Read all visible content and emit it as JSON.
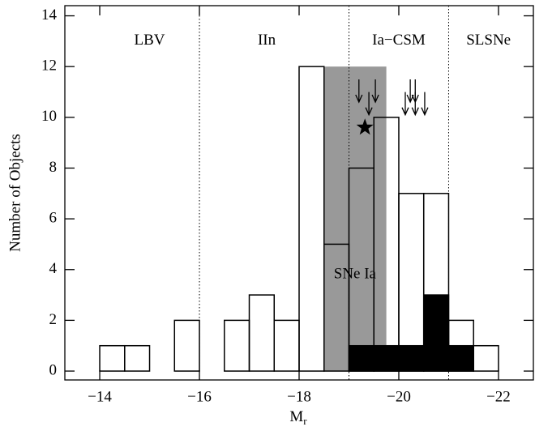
{
  "chart_data": {
    "type": "histogram",
    "xlabel": "M",
    "xlabel_sub": "r",
    "ylabel": "Number of Objects",
    "bins": [
      -14,
      -14.5,
      -15,
      -15.5,
      -16,
      -16.5,
      -17,
      -17.5,
      -18,
      -18.5,
      -19,
      -19.5,
      -20,
      -20.5,
      -21,
      -21.5,
      -22
    ],
    "series": [
      {
        "values": [
          1,
          1,
          0,
          2,
          0,
          2,
          3,
          2,
          12,
          5,
          8,
          10,
          7,
          7,
          2,
          1
        ],
        "color": "#ffffff"
      },
      {
        "values": [
          0,
          0,
          0,
          0,
          0,
          0,
          0,
          0,
          0,
          0,
          1,
          1,
          1,
          3,
          1,
          0
        ],
        "color": "#000000"
      }
    ],
    "xlim": [
      -13.3,
      -22.7
    ],
    "ylim": [
      -0.35,
      14.4
    ],
    "xticks": [
      {
        "value": -14,
        "label": "−14"
      },
      {
        "value": -16,
        "label": "−16"
      },
      {
        "value": -18,
        "label": "−18"
      },
      {
        "value": -20,
        "label": "−20"
      },
      {
        "value": -22,
        "label": "−22"
      }
    ],
    "yticks": [
      0,
      2,
      4,
      6,
      8,
      10,
      12,
      14
    ],
    "vlines": [
      -16,
      -19,
      -21
    ],
    "band": {
      "x": [
        -18.5,
        -19.75
      ],
      "y": 12,
      "color": "#999999",
      "label": "SNe Ia",
      "label_x": -19.12,
      "label_y": 3.8
    },
    "regions": [
      {
        "label": "LBV",
        "x": -15,
        "y": 13
      },
      {
        "label": "IIn",
        "x": -17.35,
        "y": 13
      },
      {
        "label": "Ia−CSM",
        "x": -20,
        "y": 13
      },
      {
        "label": "SLSNe",
        "x": -21.8,
        "y": 13
      }
    ],
    "star": {
      "x": -19.32,
      "y": 9.6
    },
    "arrows": [
      {
        "x": -19.2,
        "y": 10.6
      },
      {
        "x": -19.53,
        "y": 10.6
      },
      {
        "x": -19.4,
        "y": 10.1
      },
      {
        "x": -20.23,
        "y": 10.6
      },
      {
        "x": -20.33,
        "y": 10.6
      },
      {
        "x": -20.13,
        "y": 10.1
      },
      {
        "x": -20.33,
        "y": 10.1
      },
      {
        "x": -20.52,
        "y": 10.1
      }
    ]
  }
}
